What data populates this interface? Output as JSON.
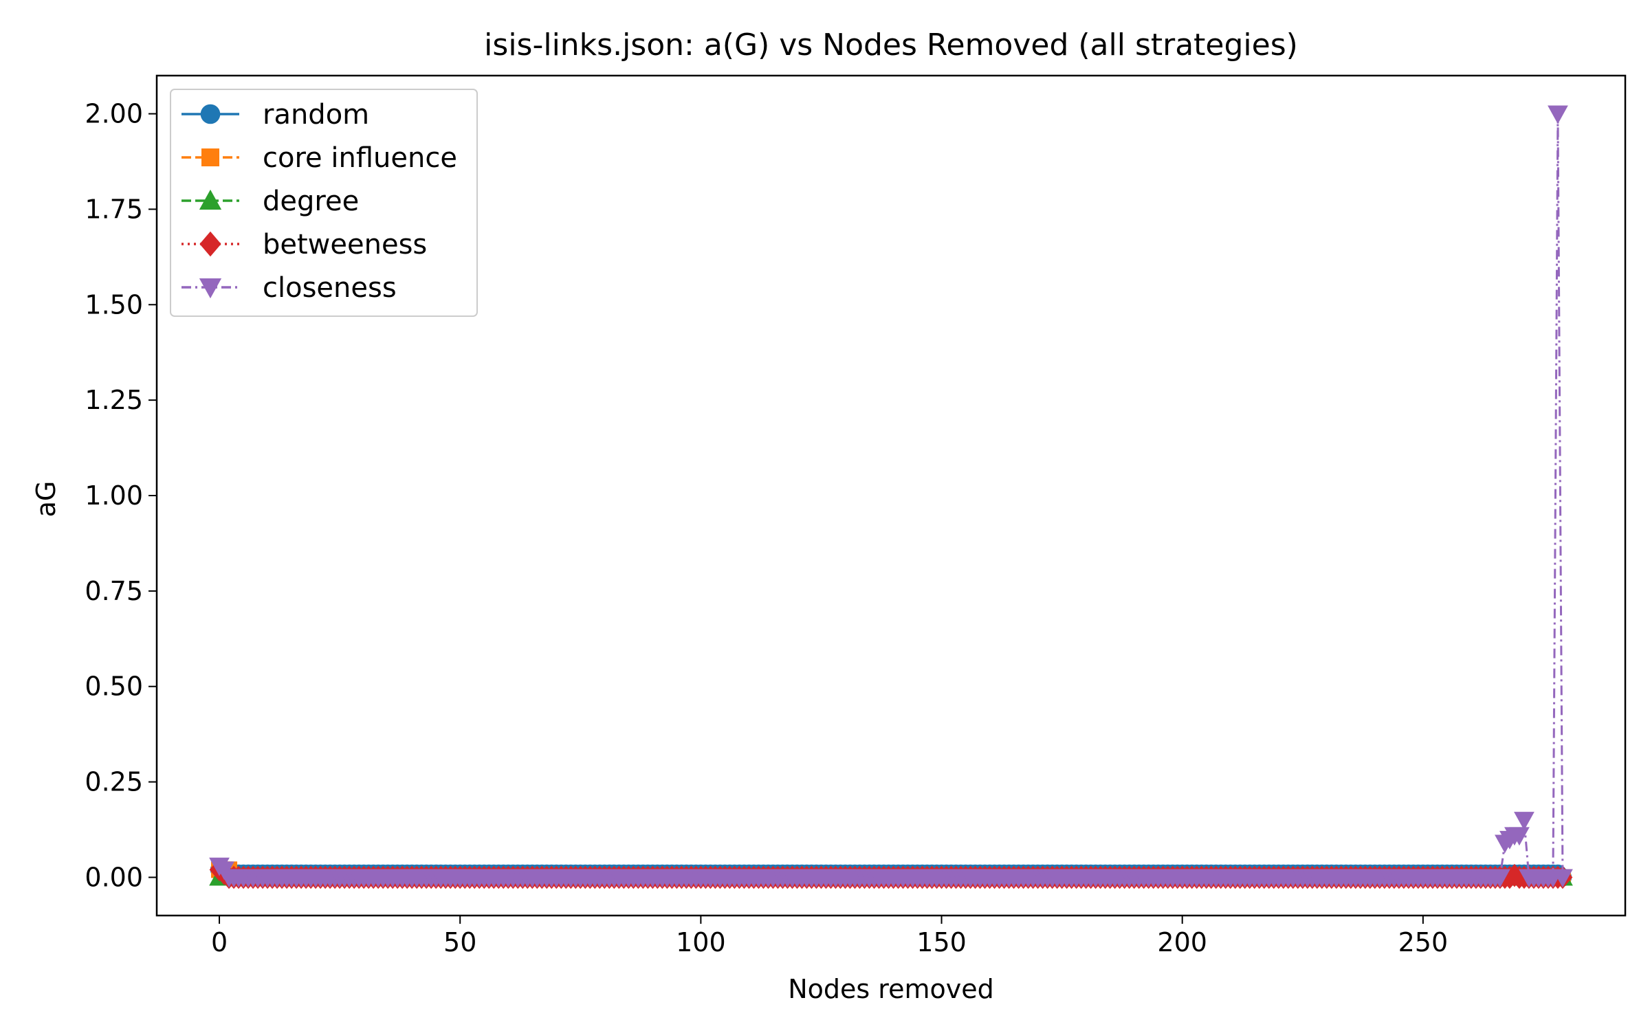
{
  "chart_data": {
    "type": "line",
    "title": "isis-links.json: a(G) vs Nodes Removed (all strategies)",
    "xlabel": "Nodes removed",
    "ylabel": "aG",
    "xlim": [
      -13,
      292
    ],
    "ylim": [
      -0.1,
      2.1
    ],
    "xticks": [
      0,
      50,
      100,
      150,
      200,
      250
    ],
    "xtick_labels": [
      "0",
      "50",
      "100",
      "150",
      "200",
      "250"
    ],
    "yticks": [
      0.0,
      0.25,
      0.5,
      0.75,
      1.0,
      1.25,
      1.5,
      1.75,
      2.0
    ],
    "ytick_labels": [
      "0.00",
      "0.25",
      "0.50",
      "0.75",
      "1.00",
      "1.25",
      "1.50",
      "1.75",
      "2.00"
    ],
    "grid": false,
    "legend_position": "top-left",
    "n_nodes": 280,
    "series": [
      {
        "name": "random",
        "color": "#1f77b4",
        "marker": "circle",
        "linestyle": "solid",
        "points": [
          [
            0,
            0.02
          ],
          [
            1,
            0.01
          ],
          [
            279,
            0.0
          ]
        ]
      },
      {
        "name": "core influence",
        "color": "#ff7f0e",
        "marker": "square",
        "linestyle": "dashed",
        "points": [
          [
            0,
            0.02
          ],
          [
            2,
            0.02
          ],
          [
            3,
            0.0
          ],
          [
            279,
            0.0
          ]
        ]
      },
      {
        "name": "degree",
        "color": "#2ca02c",
        "marker": "triangle-up",
        "linestyle": "dashed",
        "points": [
          [
            0,
            0.0
          ],
          [
            1,
            0.0
          ],
          [
            279,
            0.0
          ]
        ]
      },
      {
        "name": "betweeness",
        "color": "#d62728",
        "marker": "diamond",
        "linestyle": "dotted",
        "points": [
          [
            0,
            0.02
          ],
          [
            1,
            0.01
          ],
          [
            2,
            0.0
          ],
          [
            268,
            0.0
          ],
          [
            269,
            0.005
          ],
          [
            270,
            0.0
          ],
          [
            279,
            0.0
          ]
        ]
      },
      {
        "name": "closeness",
        "color": "#9467bd",
        "marker": "triangle-down",
        "linestyle": "dashdot",
        "points": [
          [
            0,
            0.03
          ],
          [
            1,
            0.02
          ],
          [
            2,
            0.0
          ],
          [
            266,
            0.0
          ],
          [
            267,
            0.09
          ],
          [
            268,
            0.1
          ],
          [
            269,
            0.11
          ],
          [
            270,
            0.11
          ],
          [
            271,
            0.15
          ],
          [
            272,
            0.0
          ],
          [
            277,
            0.0
          ],
          [
            278,
            2.0
          ],
          [
            279,
            0.0
          ]
        ]
      }
    ]
  }
}
